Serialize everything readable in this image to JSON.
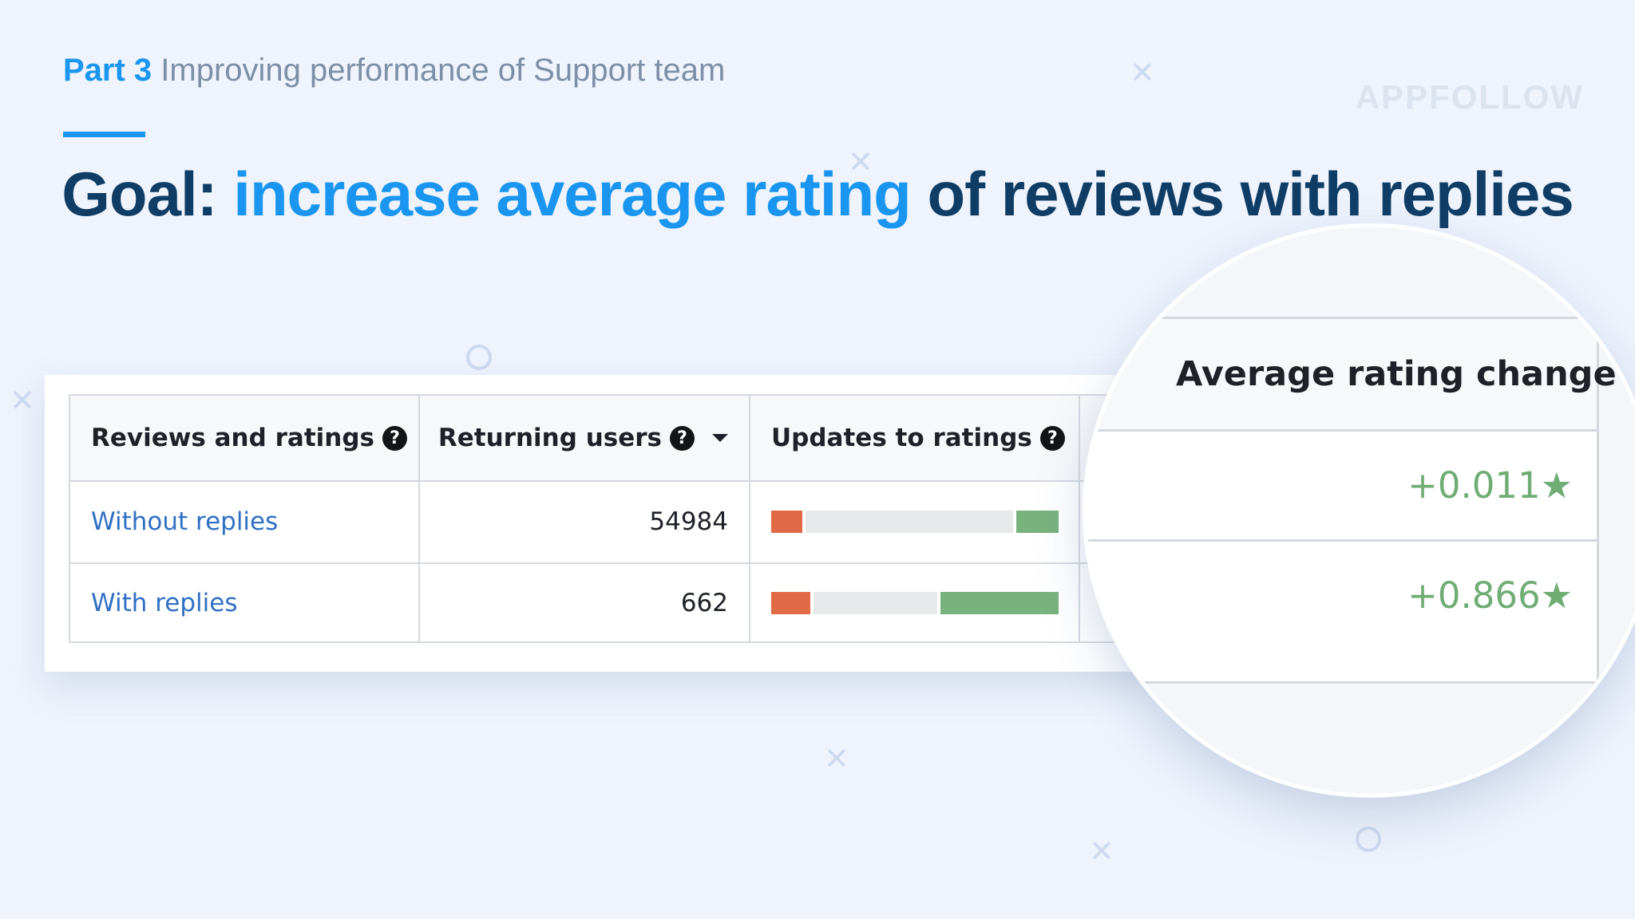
{
  "header": {
    "part_label": "Part 3",
    "subtitle": "Improving performance of Support team",
    "brand": "APPFOLLOW"
  },
  "goal": {
    "prefix": "Goal:",
    "highlight": "increase average rating",
    "suffix": "of reviews with replies"
  },
  "table": {
    "columns": {
      "reviews": "Reviews and ratings",
      "returning": "Returning users",
      "updates": "Updates to ratings",
      "avg_change": "Average rating change"
    },
    "help_glyph": "?",
    "rows": [
      {
        "label": "Without replies",
        "returning_users": "54984",
        "bar": {
          "negative": 0.11,
          "neutral": 0.74,
          "positive": 0.15
        },
        "avg_change": "+0.011"
      },
      {
        "label": "With replies",
        "returning_users": "662",
        "bar": {
          "negative": 0.14,
          "neutral": 0.44,
          "positive": 0.42
        },
        "avg_change": "+0.866"
      }
    ]
  },
  "colors": {
    "accent": "#1a96f0",
    "title_dark": "#0f3d66",
    "negative": "#e06a45",
    "neutral": "#e8e9eb",
    "positive": "#78b27d",
    "rating_green": "#6fad74"
  },
  "icons": [
    "help-circle-icon",
    "caret-down-icon",
    "star-icon"
  ]
}
